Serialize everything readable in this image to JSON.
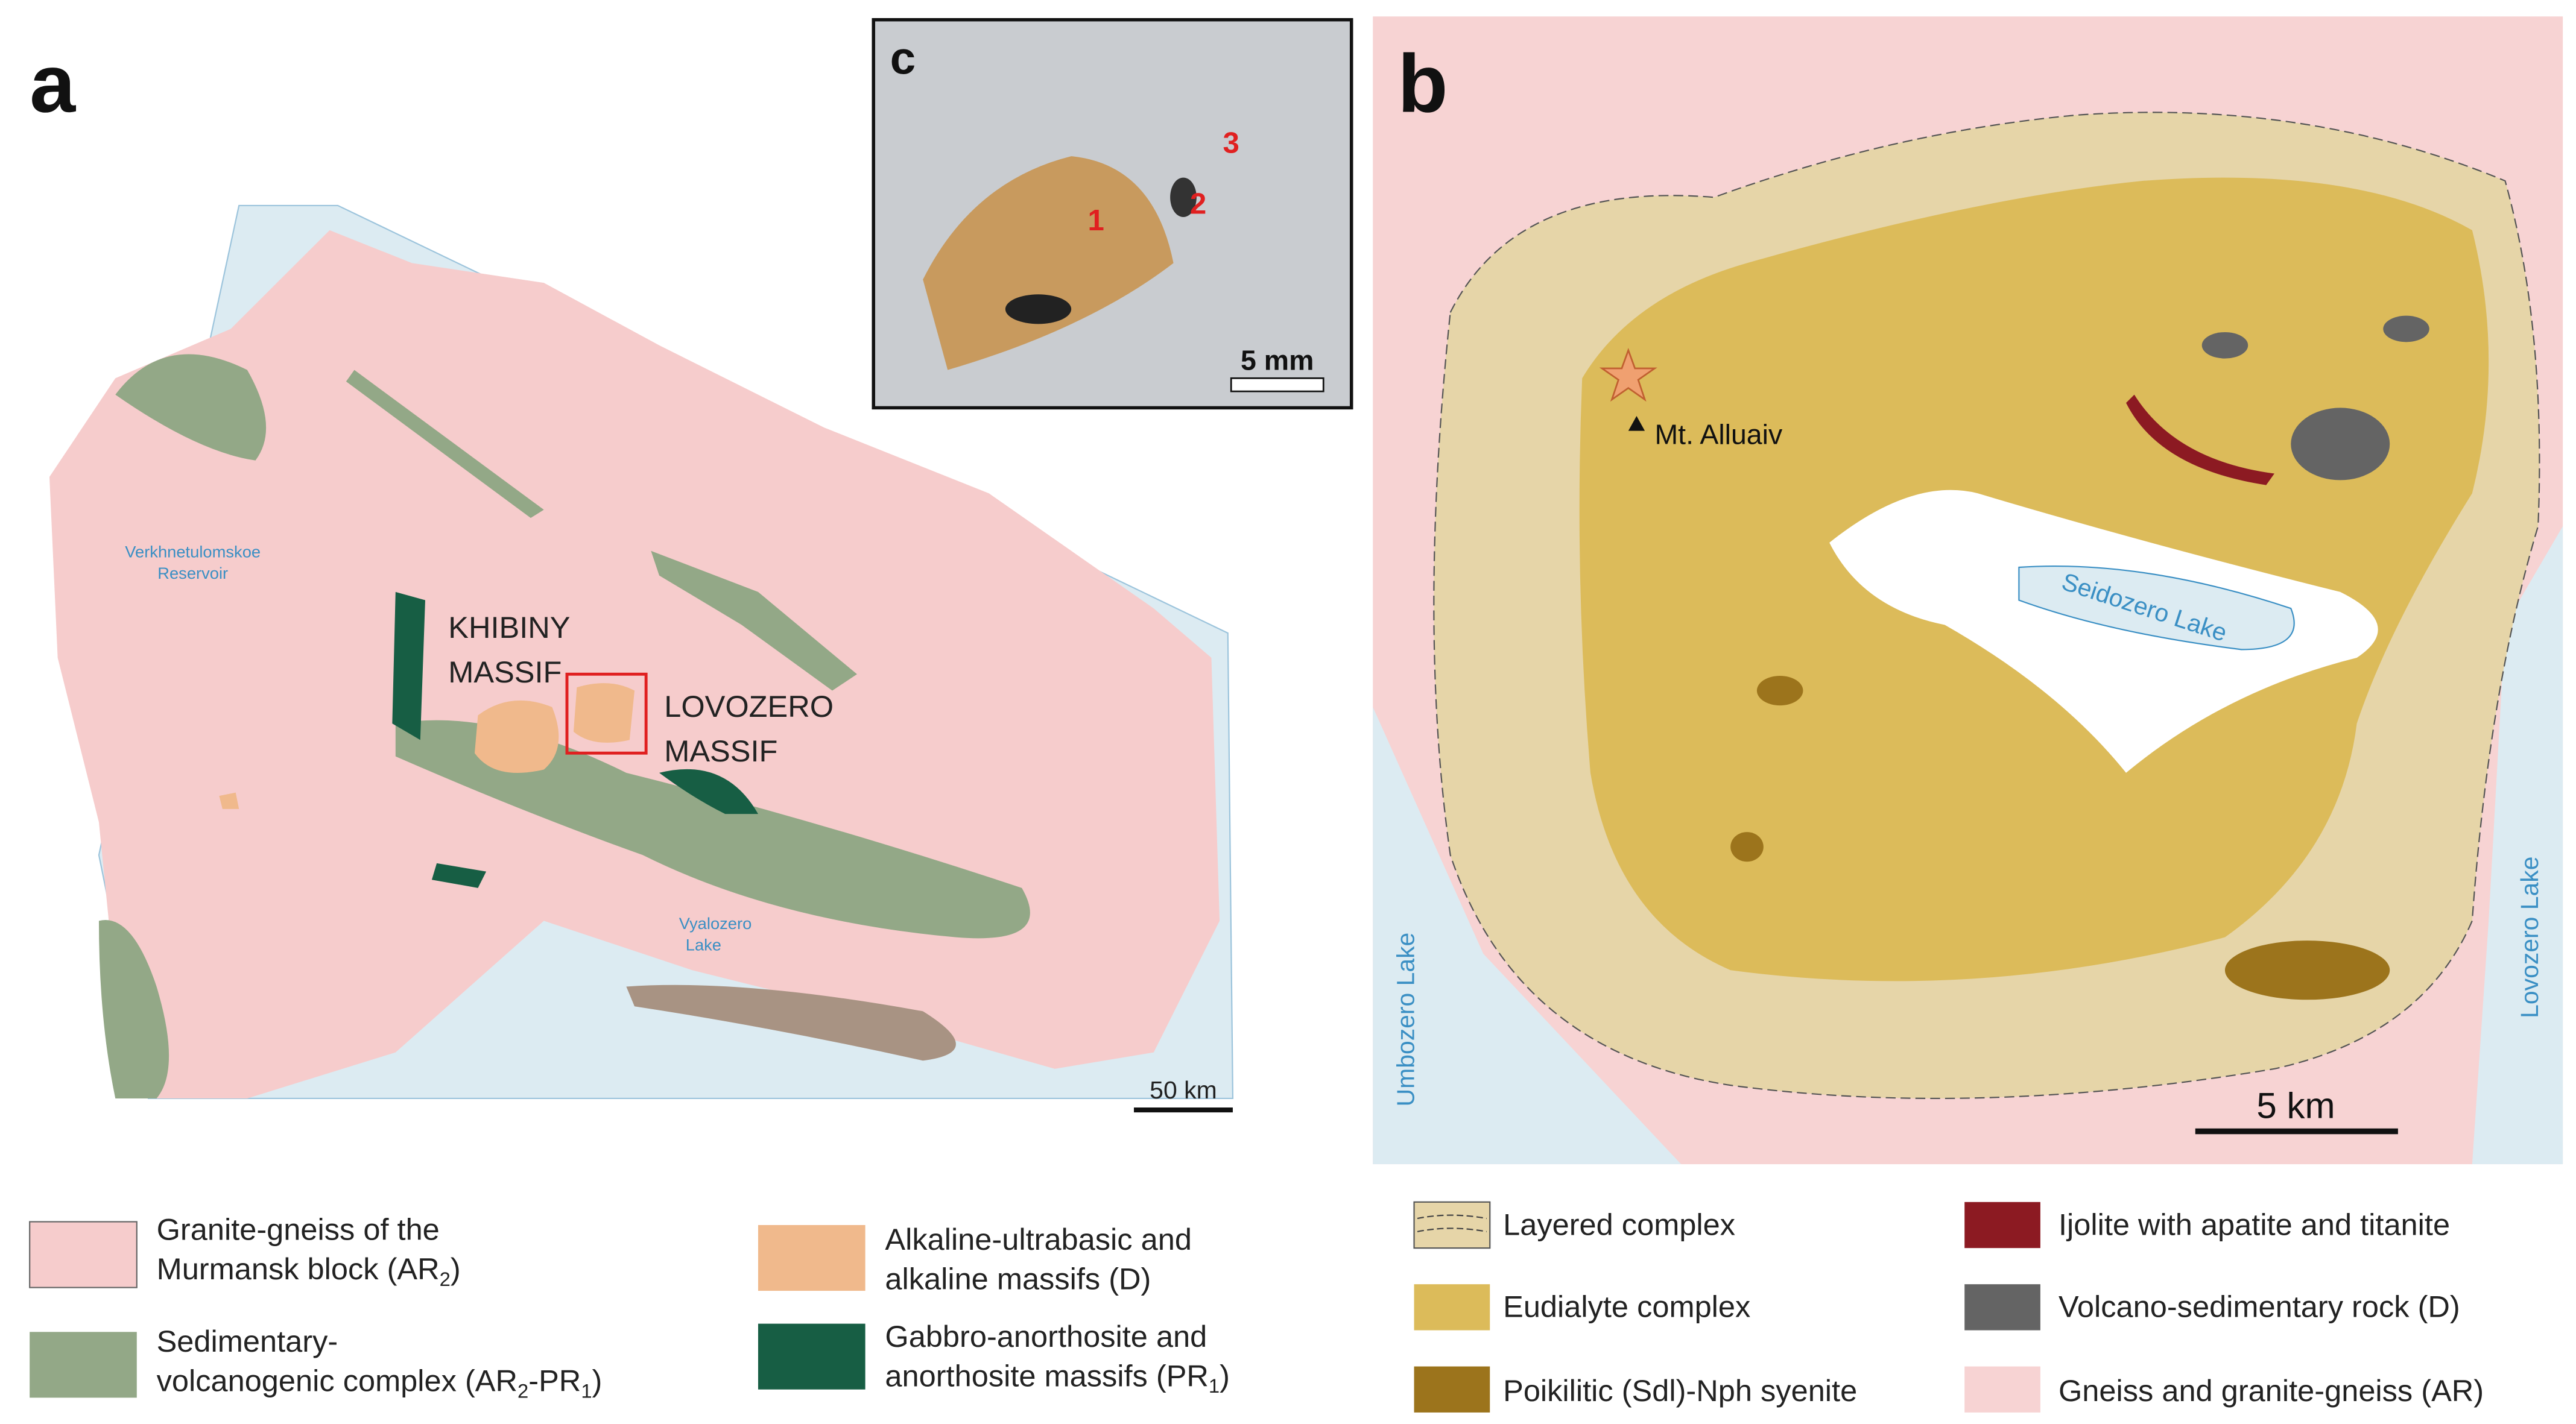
{
  "panels": {
    "a": "a",
    "b": "b",
    "c": "c"
  },
  "map_a": {
    "reservoir": [
      "Verkhnetulomskoe",
      "Reservoir"
    ],
    "khibiny": [
      "KHIBINY",
      "MASSIF"
    ],
    "lovozero": [
      "LOVOZERO",
      "MASSIF"
    ],
    "vyalozero": [
      "Vyalozero",
      "Lake"
    ],
    "scale": "50 km"
  },
  "photo_c": {
    "points": [
      "1",
      "2",
      "3"
    ],
    "scale": "5 mm"
  },
  "map_b": {
    "peak": "Mt. Alluaiv",
    "seidozero": "Seidozero Lake",
    "umbozero": "Umbozero Lake",
    "lovozero": "Lovozero Lake",
    "scale": "5 km"
  },
  "legend_a": {
    "items": [
      {
        "lines": [
          [
            "Granite-gneiss of the"
          ],
          [
            "Murmansk block (AR",
            "2",
            ")"
          ]
        ]
      },
      {
        "lines": [
          [
            "Sedimentary-"
          ],
          [
            "volcanogenic complex (AR",
            "2",
            "-PR",
            "1",
            ")"
          ]
        ]
      },
      {
        "lines": [
          [
            "Alkaline-ultrabasic and"
          ],
          [
            "alkaline massifs (D)"
          ]
        ]
      },
      {
        "lines": [
          [
            "Gabbro-anorthosite and"
          ],
          [
            "anorthosite massifs (PR",
            "1",
            ")"
          ]
        ]
      }
    ]
  },
  "legend_b": {
    "items": [
      "Layered complex",
      "Eudialyte complex",
      "Poikilitic (Sdl)-Nph syenite",
      "Ijolite with apatite and titanite",
      "Volcano-sedimentary rock (D)",
      "Gneiss and granite-gneiss (AR)"
    ]
  }
}
